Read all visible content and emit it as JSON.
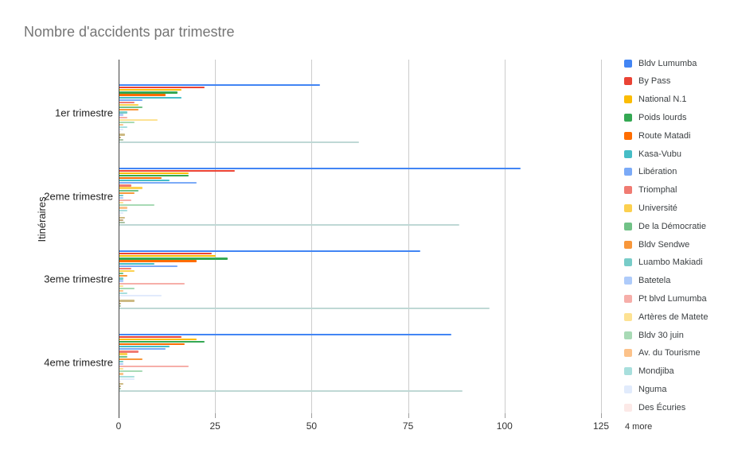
{
  "title": "Nombre d'accidents par trimestre",
  "legend": {
    "more_label": "4 more"
  },
  "chart_data": {
    "type": "bar",
    "orientation": "horizontal",
    "title": "Nombre d'accidents par trimestre",
    "xlabel": "",
    "ylabel": "Itinéraires",
    "xlim": [
      0,
      125
    ],
    "x_ticks": [
      0,
      25,
      50,
      75,
      100,
      125
    ],
    "grid": true,
    "legend_position": "right",
    "legend_overflow_label": "4 more",
    "categories": [
      "1er trimestre",
      "2eme trimestre",
      "3eme trimestre",
      "4eme trimestre"
    ],
    "series": [
      {
        "name": "Bldv Lumumba",
        "color": "#4285F4",
        "in_legend": true,
        "values": [
          52,
          104,
          78,
          86
        ]
      },
      {
        "name": "By Pass",
        "color": "#EA4335",
        "in_legend": true,
        "values": [
          22,
          30,
          24,
          16
        ]
      },
      {
        "name": "National N.1",
        "color": "#FBBC04",
        "in_legend": true,
        "values": [
          16,
          18,
          25,
          20
        ]
      },
      {
        "name": "Poids lourds",
        "color": "#34A853",
        "in_legend": true,
        "values": [
          15,
          18,
          28,
          22
        ]
      },
      {
        "name": "Route Matadi",
        "color": "#FF6D01",
        "in_legend": true,
        "values": [
          12,
          11,
          20,
          17
        ]
      },
      {
        "name": "Kasa-Vubu",
        "color": "#46BDC6",
        "in_legend": true,
        "values": [
          16,
          13,
          9,
          13
        ]
      },
      {
        "name": "Libération",
        "color": "#7BAAF7",
        "in_legend": true,
        "values": [
          6,
          20,
          15,
          12
        ]
      },
      {
        "name": "Triomphal",
        "color": "#F07B72",
        "in_legend": true,
        "values": [
          4,
          3,
          3,
          5
        ]
      },
      {
        "name": "Université",
        "color": "#FCD04F",
        "in_legend": true,
        "values": [
          5,
          6,
          4,
          2
        ]
      },
      {
        "name": "De la Démocratie",
        "color": "#71C287",
        "in_legend": true,
        "values": [
          6,
          5,
          1,
          2
        ]
      },
      {
        "name": "Bldv Sendwe",
        "color": "#F8973A",
        "in_legend": true,
        "values": [
          5,
          4,
          2,
          6
        ]
      },
      {
        "name": "Luambo Makiadi",
        "color": "#78CCC8",
        "in_legend": true,
        "values": [
          2,
          1,
          1,
          1
        ]
      },
      {
        "name": "Batetela",
        "color": "#AECBFA",
        "in_legend": true,
        "values": [
          1,
          1,
          1,
          1
        ]
      },
      {
        "name": "Pt blvd Lumumba",
        "color": "#F6AEA9",
        "in_legend": true,
        "values": [
          2,
          3,
          17,
          18
        ]
      },
      {
        "name": "Artères de Matete",
        "color": "#FDE293",
        "in_legend": true,
        "values": [
          10,
          1,
          1,
          1
        ]
      },
      {
        "name": "Bldv 30 juin",
        "color": "#A8DAB5",
        "in_legend": true,
        "values": [
          4,
          9,
          4,
          6
        ]
      },
      {
        "name": "Av. du Tourisme",
        "color": "#FCC28A",
        "in_legend": true,
        "values": [
          1,
          2,
          1,
          1
        ]
      },
      {
        "name": "Mondjiba",
        "color": "#A8DFDD",
        "in_legend": true,
        "values": [
          2,
          2,
          2,
          4
        ]
      },
      {
        "name": "Nguma",
        "color": "#E1EBFC",
        "in_legend": true,
        "values": [
          1,
          1,
          11,
          4
        ]
      },
      {
        "name": "Des Écuries",
        "color": "#FCE9E7",
        "in_legend": true,
        "values": [
          0.5,
          0.5,
          0.5,
          0.5
        ]
      },
      {
        "name": "",
        "color": "#CDBA83",
        "in_legend": false,
        "values": [
          1.5,
          1.5,
          4,
          1
        ]
      },
      {
        "name": "",
        "color": "#BFA77C",
        "in_legend": false,
        "values": [
          0.5,
          1,
          0.5,
          0.5
        ]
      },
      {
        "name": "",
        "color": "#A9C3A5",
        "in_legend": false,
        "values": [
          1,
          1.5,
          0.5,
          0.5
        ]
      },
      {
        "name": "",
        "color": "#BFD8D5",
        "in_legend": false,
        "values": [
          62,
          88,
          96,
          89
        ]
      }
    ]
  }
}
